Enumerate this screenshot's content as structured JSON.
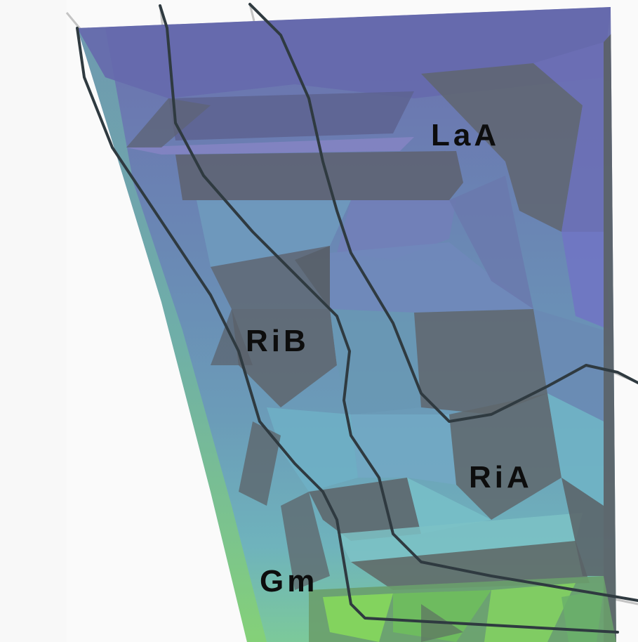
{
  "labels": {
    "laa": "LaA",
    "rib": "RiB",
    "ria": "RiA",
    "gm": "Gm"
  },
  "colors": {
    "background": "#f8f8f8",
    "upper_surface": "#6a70b0",
    "middle_surface": "#6a93b3",
    "lower_surface": "#74c0c4",
    "base_surface": "#7fd46a",
    "shadow_facet": "#5e6368",
    "contour_line": "#2f3a40",
    "frame_line": "#bfbfbf",
    "label_text": "#0d0d0d"
  }
}
